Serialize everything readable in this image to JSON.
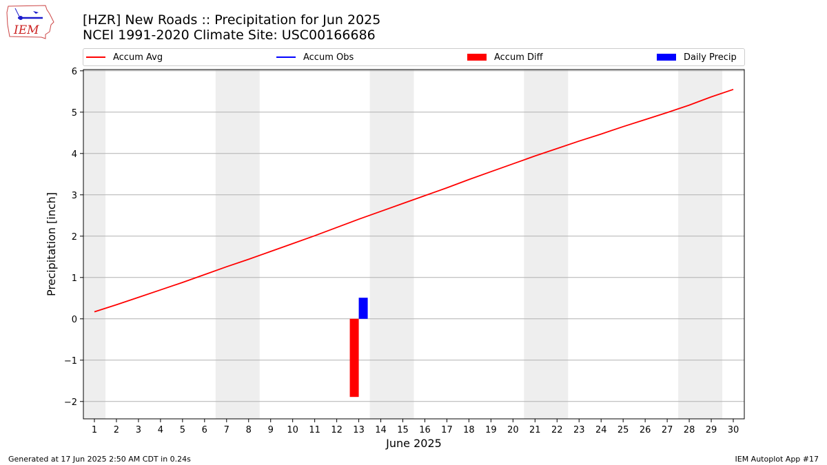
{
  "logo": {
    "text": "IEM"
  },
  "header": {
    "title_line1": "[HZR] New Roads :: Precipitation for Jun 2025",
    "title_line2": "NCEI 1991-2020 Climate Site: USC00166686"
  },
  "legend": {
    "items": [
      {
        "label": "Accum Avg",
        "kind": "line",
        "color": "#ff0000"
      },
      {
        "label": "Accum Obs",
        "kind": "line",
        "color": "#0000ff"
      },
      {
        "label": "Accum Diff",
        "kind": "box",
        "color": "#ff0000"
      },
      {
        "label": "Daily Precip",
        "kind": "box",
        "color": "#0000ff"
      }
    ],
    "placement": "top"
  },
  "chart_data": {
    "type": "bar",
    "xlabel": "June 2025",
    "ylabel": "Precipitation [inch]",
    "xlim": [
      0.5,
      30.5
    ],
    "ylim": [
      -2.42,
      6.03
    ],
    "x_ticks": [
      1,
      2,
      3,
      4,
      5,
      6,
      7,
      8,
      9,
      10,
      11,
      12,
      13,
      14,
      15,
      16,
      17,
      18,
      19,
      20,
      21,
      22,
      23,
      24,
      25,
      26,
      27,
      28,
      29,
      30
    ],
    "y_ticks": [
      -2,
      -1,
      0,
      1,
      2,
      3,
      4,
      5,
      6
    ],
    "y_tick_labels": [
      "−2",
      "−1",
      "0",
      "1",
      "2",
      "3",
      "4",
      "5",
      "6"
    ],
    "grid": "horizontal",
    "weekend_shading": [
      [
        0.5,
        1.5
      ],
      [
        6.5,
        8.5
      ],
      [
        13.5,
        15.5
      ],
      [
        20.5,
        22.5
      ],
      [
        27.5,
        29.5
      ]
    ],
    "weekend_color": "#eeeeee",
    "accum_avg": {
      "name": "Accum Avg",
      "color": "#ff0000",
      "x": [
        1,
        2,
        3,
        4,
        5,
        6,
        7,
        8,
        9,
        10,
        11,
        12,
        13,
        14,
        15,
        16,
        17,
        18,
        19,
        20,
        21,
        22,
        23,
        24,
        25,
        26,
        27,
        28,
        29,
        30
      ],
      "values": [
        0.17,
        0.34,
        0.52,
        0.7,
        0.88,
        1.07,
        1.26,
        1.44,
        1.63,
        1.82,
        2.01,
        2.21,
        2.41,
        2.6,
        2.79,
        2.98,
        3.17,
        3.37,
        3.56,
        3.75,
        3.94,
        4.12,
        4.3,
        4.47,
        4.65,
        4.82,
        4.99,
        5.17,
        5.37,
        5.55
      ]
    },
    "accum_diff": {
      "name": "Accum Diff",
      "color": "#ff0000",
      "x": [
        13
      ],
      "values": [
        -1.89
      ]
    },
    "daily_precip": {
      "name": "Daily Precip",
      "color": "#0000ff",
      "x": [
        13
      ],
      "values": [
        0.51
      ]
    }
  },
  "footer": {
    "generated": "Generated at 17 Jun 2025 2:50 AM CDT in 0.24s",
    "app": "IEM Autoplot App #17"
  }
}
